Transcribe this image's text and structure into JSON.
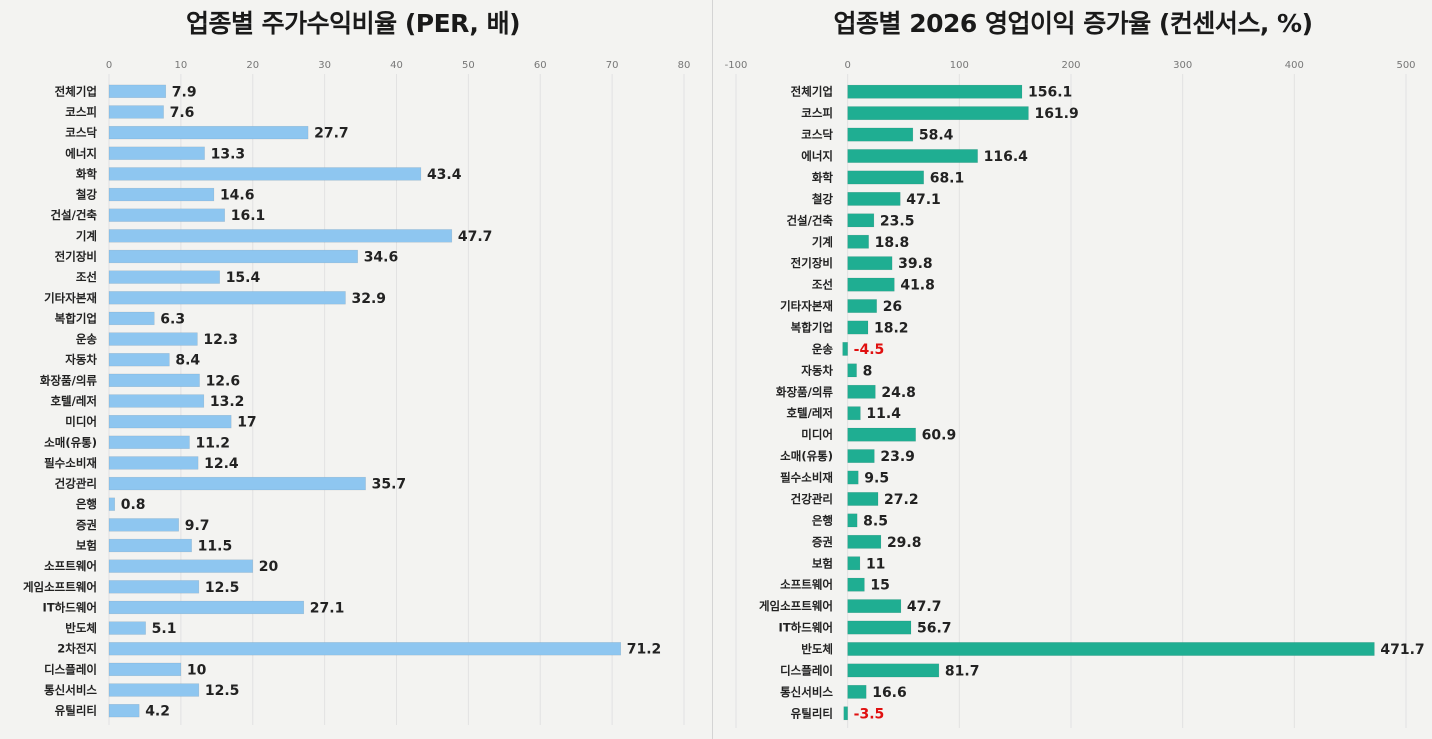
{
  "chart_data": [
    {
      "type": "bar",
      "orientation": "horizontal",
      "title": "업종별 주가수익비율 (PER, 배)",
      "xlim": [
        0,
        80
      ],
      "ticks": [
        0,
        10,
        20,
        30,
        40,
        50,
        60,
        70,
        80
      ],
      "color": "#8ec6f0",
      "categories": [
        "전체기업",
        "코스피",
        "코스닥",
        "에너지",
        "화학",
        "철강",
        "건설/건축",
        "기계",
        "전기장비",
        "조선",
        "기타자본재",
        "복합기업",
        "운송",
        "자동차",
        "화장품/의류",
        "호텔/레저",
        "미디어",
        "소매(유통)",
        "필수소비재",
        "건강관리",
        "은행",
        "증권",
        "보험",
        "소프트웨어",
        "게임소프트웨어",
        "IT하드웨어",
        "반도체",
        "2차전지",
        "디스플레이",
        "통신서비스",
        "유틸리티"
      ],
      "values": [
        7.9,
        7.6,
        27.7,
        13.3,
        43.4,
        14.6,
        16.1,
        47.7,
        34.6,
        15.4,
        32.9,
        6.3,
        12.3,
        8.4,
        12.6,
        13.2,
        17,
        11.2,
        12.4,
        35.7,
        0.8,
        9.7,
        11.5,
        20,
        12.5,
        27.1,
        5.1,
        71.2,
        10,
        12.5,
        4.2
      ]
    },
    {
      "type": "bar",
      "orientation": "horizontal",
      "title": "업종별 2026 영업이익 증가율 (컨센서스, %)",
      "xlim": [
        -100,
        500
      ],
      "ticks": [
        -100,
        0,
        100,
        200,
        300,
        400,
        500
      ],
      "color": "#1fae92",
      "negative_label_color": "#e01010",
      "categories": [
        "전체기업",
        "코스피",
        "코스닥",
        "에너지",
        "화학",
        "철강",
        "건설/건축",
        "기계",
        "전기장비",
        "조선",
        "기타자본재",
        "복합기업",
        "운송",
        "자동차",
        "화장품/의류",
        "호텔/레저",
        "미디어",
        "소매(유통)",
        "필수소비재",
        "건강관리",
        "은행",
        "증권",
        "보험",
        "소프트웨어",
        "게임소프트웨어",
        "IT하드웨어",
        "반도체",
        "디스플레이",
        "통신서비스",
        "유틸리티"
      ],
      "values": [
        156.1,
        161.9,
        58.4,
        116.4,
        68.1,
        47.1,
        23.5,
        18.8,
        39.8,
        41.8,
        26,
        18.2,
        -4.5,
        8,
        24.8,
        11.4,
        60.9,
        23.9,
        9.5,
        27.2,
        8.5,
        29.8,
        11,
        15,
        47.7,
        56.7,
        471.7,
        81.7,
        16.6,
        -3.5
      ]
    }
  ]
}
